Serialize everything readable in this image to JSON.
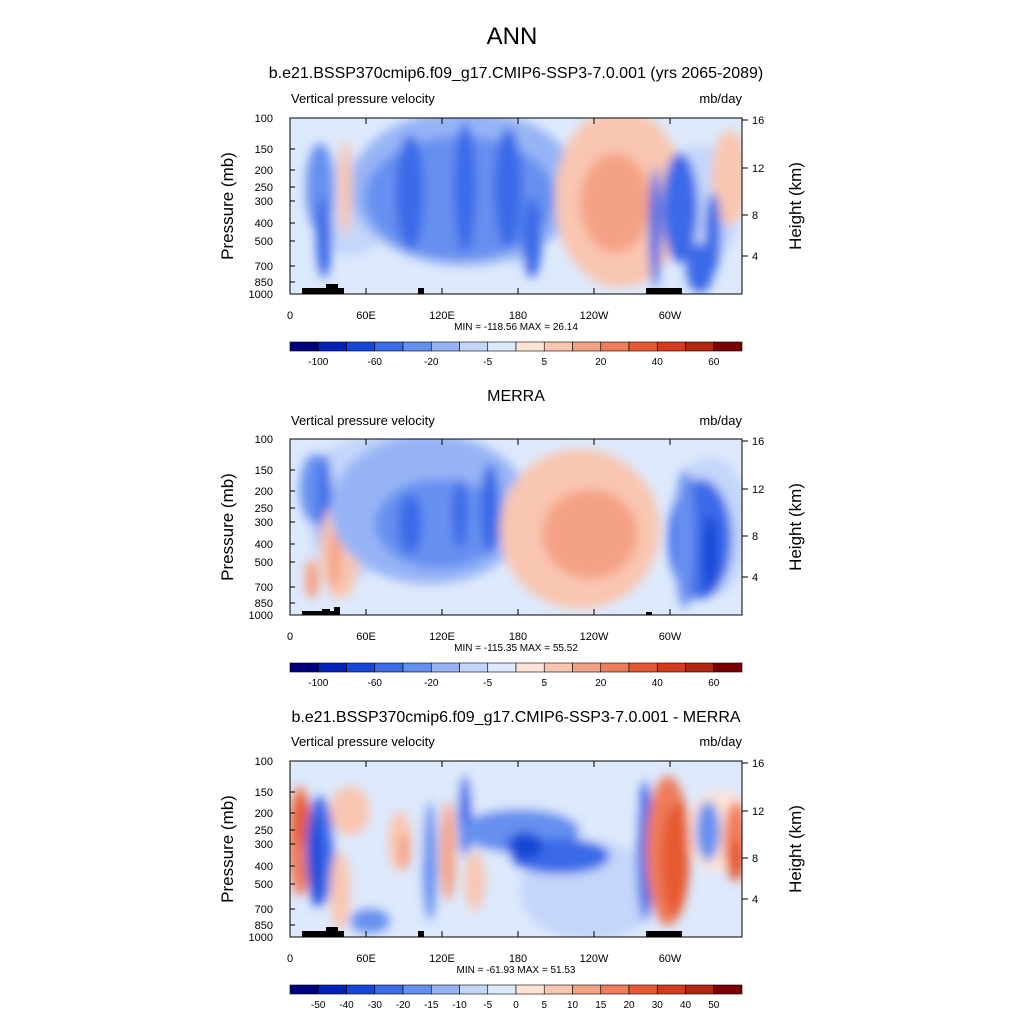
{
  "figure": {
    "title": "ANN"
  },
  "chart_data": [
    {
      "type": "heatmap",
      "title": "b.e21.BSSP370cmip6.f09_g17.CMIP6-SSP3-7.0.001 (yrs 2065-2089)",
      "left_label": "Vertical pressure velocity",
      "units": "mb/day",
      "ylabel": "Pressure (mb)",
      "ylabel_right": "Height (km)",
      "y_ticks": [
        "100",
        "150",
        "200",
        "250",
        "300",
        "400",
        "500",
        "700",
        "850",
        "1000"
      ],
      "y_ticks_right": [
        "16",
        "12",
        "8",
        "4"
      ],
      "x_ticks": [
        "0",
        "60E",
        "120E",
        "180",
        "120W",
        "60W"
      ],
      "stats": "MIN = -118.56  MAX = 26.14",
      "colorbar_labels": [
        "-100",
        "-60",
        "-20",
        "-5",
        "5",
        "20",
        "40",
        "60"
      ],
      "colors": [
        "#00007f",
        "#0022b8",
        "#1747d8",
        "#3a6be8",
        "#6690f0",
        "#96b4f5",
        "#c4d6fa",
        "#dde9fc",
        "#fde4d6",
        "#f9c6b1",
        "#f4a285",
        "#ef7c5a",
        "#e65a33",
        "#d43b1c",
        "#b2250f",
        "#7a0000"
      ]
    },
    {
      "type": "heatmap",
      "title": "MERRA",
      "left_label": "Vertical pressure velocity",
      "units": "mb/day",
      "ylabel": "Pressure (mb)",
      "ylabel_right": "Height (km)",
      "y_ticks": [
        "100",
        "150",
        "200",
        "250",
        "300",
        "400",
        "500",
        "700",
        "850",
        "1000"
      ],
      "y_ticks_right": [
        "16",
        "12",
        "8",
        "4"
      ],
      "x_ticks": [
        "0",
        "60E",
        "120E",
        "180",
        "120W",
        "60W"
      ],
      "stats": "MIN = -115.35  MAX = 55.52",
      "colorbar_labels": [
        "-100",
        "-60",
        "-20",
        "-5",
        "5",
        "20",
        "40",
        "60"
      ],
      "colors": [
        "#00007f",
        "#0022b8",
        "#1747d8",
        "#3a6be8",
        "#6690f0",
        "#96b4f5",
        "#c4d6fa",
        "#dde9fc",
        "#fde4d6",
        "#f9c6b1",
        "#f4a285",
        "#ef7c5a",
        "#e65a33",
        "#d43b1c",
        "#b2250f",
        "#7a0000"
      ]
    },
    {
      "type": "heatmap",
      "title": "b.e21.BSSP370cmip6.f09_g17.CMIP6-SSP3-7.0.001 - MERRA",
      "left_label": "Vertical pressure velocity",
      "units": "mb/day",
      "ylabel": "Pressure (mb)",
      "ylabel_right": "Height (km)",
      "y_ticks": [
        "100",
        "150",
        "200",
        "250",
        "300",
        "400",
        "500",
        "700",
        "850",
        "1000"
      ],
      "y_ticks_right": [
        "16",
        "12",
        "8",
        "4"
      ],
      "x_ticks": [
        "0",
        "60E",
        "120E",
        "180",
        "120W",
        "60W"
      ],
      "stats": "MIN = -61.93  MAX = 51.53",
      "colorbar_labels": [
        "-50",
        "-40",
        "-30",
        "-20",
        "-15",
        "-10",
        "-5",
        "0",
        "5",
        "10",
        "15",
        "20",
        "30",
        "40",
        "50"
      ],
      "colors": [
        "#00007f",
        "#0022b8",
        "#1747d8",
        "#3a6be8",
        "#6690f0",
        "#96b4f5",
        "#c4d6fa",
        "#dde9fc",
        "#fde4d6",
        "#f9c6b1",
        "#f4a285",
        "#ef7c5a",
        "#e65a33",
        "#d43b1c",
        "#b2250f",
        "#7a0000"
      ]
    }
  ]
}
